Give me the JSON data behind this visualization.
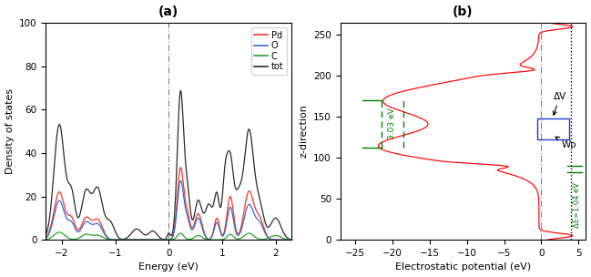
{
  "panel_a": {
    "title": "(a)",
    "xlabel": "Energy (eV)",
    "ylabel": "Density of states",
    "xlim": [
      -2.3,
      2.3
    ],
    "ylim": [
      0,
      100
    ],
    "yticks": [
      0,
      20,
      40,
      60,
      80,
      100
    ],
    "xticks": [
      -2,
      -1,
      0,
      1,
      2
    ],
    "vline_x": 0,
    "colors": {
      "Pd": "#e8392a",
      "O": "#3c68c9",
      "C": "#2ca02c",
      "tot": "#2b2b2b"
    }
  },
  "panel_b": {
    "title": "(b)",
    "xlabel": "Electrostatic potential (eV)",
    "ylabel": "z-direction",
    "xlim": [
      -27,
      6
    ],
    "ylim": [
      0,
      265
    ],
    "yticks": [
      0,
      50,
      100,
      150,
      200,
      250
    ],
    "xticks": [
      -25,
      -20,
      -15,
      -10,
      -5,
      0,
      5
    ],
    "annotation_3ev": "3.03 eV",
    "annotation_de": "ΔE=1.04 eV",
    "annotation_dv": "ΔV",
    "annotation_wb": "Wᴅ"
  }
}
